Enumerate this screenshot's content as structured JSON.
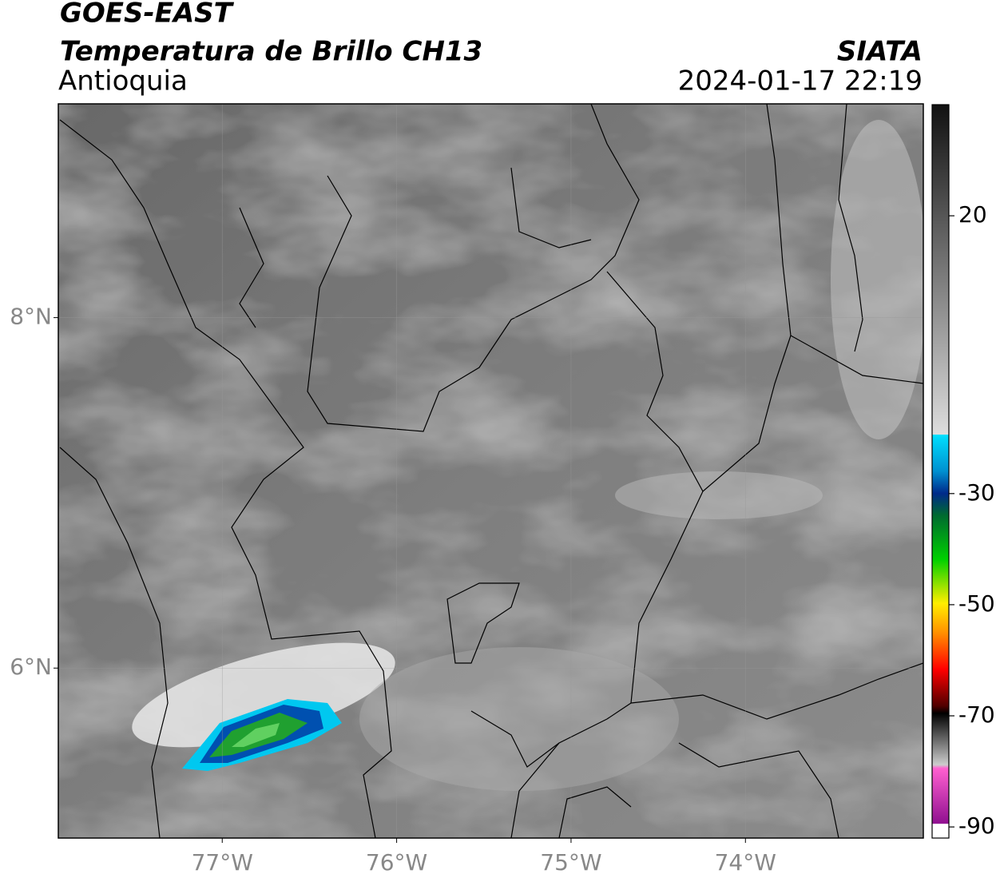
{
  "map": {
    "title": "GOES-EAST",
    "subtitle": "Temperatura de Brillo CH13",
    "source": "SIATA",
    "region": "Antioquia",
    "datetime": "2024-01-17 22:19",
    "xlim": [
      -77.94,
      -72.98
    ],
    "ylim": [
      5.03,
      9.22
    ],
    "xticks": [
      {
        "value": -77,
        "label": "77°W"
      },
      {
        "value": -76,
        "label": "76°W"
      },
      {
        "value": -75,
        "label": "75°W"
      },
      {
        "value": -74,
        "label": "74°W"
      }
    ],
    "yticks": [
      {
        "value": 6,
        "label": "6°N"
      },
      {
        "value": 8,
        "label": "8°N"
      }
    ],
    "grid": true,
    "colorbar": {
      "lim": [
        -92,
        40
      ],
      "ticks": [
        20,
        -30,
        -50,
        -70,
        -90
      ]
    }
  }
}
